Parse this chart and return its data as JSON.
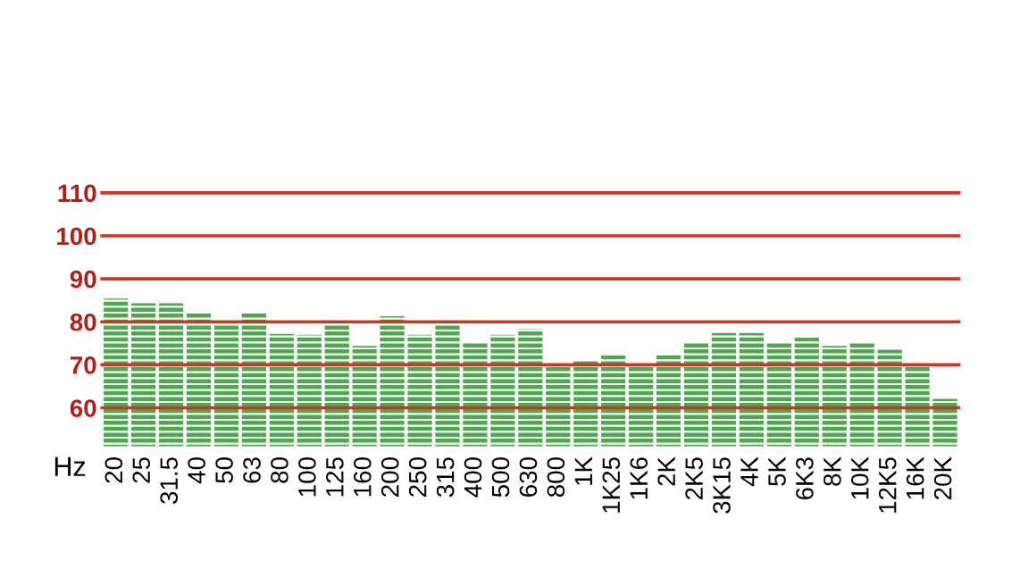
{
  "chart_data": {
    "type": "bar",
    "xlabel": "Hz",
    "categories": [
      "20",
      "25",
      "31.5",
      "40",
      "50",
      "63",
      "80",
      "100",
      "125",
      "160",
      "200",
      "250",
      "315",
      "400",
      "500",
      "630",
      "800",
      "1K",
      "1K25",
      "1K6",
      "2K",
      "2K5",
      "3K15",
      "4K",
      "5K",
      "6K3",
      "8K",
      "10K",
      "12K5",
      "16K",
      "20K"
    ],
    "values": [
      85.4,
      84.3,
      84.3,
      82.2,
      80,
      82,
      77.2,
      77,
      79.5,
      74.4,
      81.3,
      77,
      79.5,
      75.3,
      77,
      78.3,
      70,
      71.1,
      72.2,
      70,
      72.2,
      75.3,
      77.4,
      77.4,
      75.3,
      76.3,
      74.4,
      75.3,
      73.5,
      70,
      62.1
    ],
    "color": "#4ea84e",
    "ylim": [
      51,
      110
    ],
    "yticks": [
      60,
      70,
      80,
      90,
      100,
      110
    ],
    "grid": "y"
  }
}
